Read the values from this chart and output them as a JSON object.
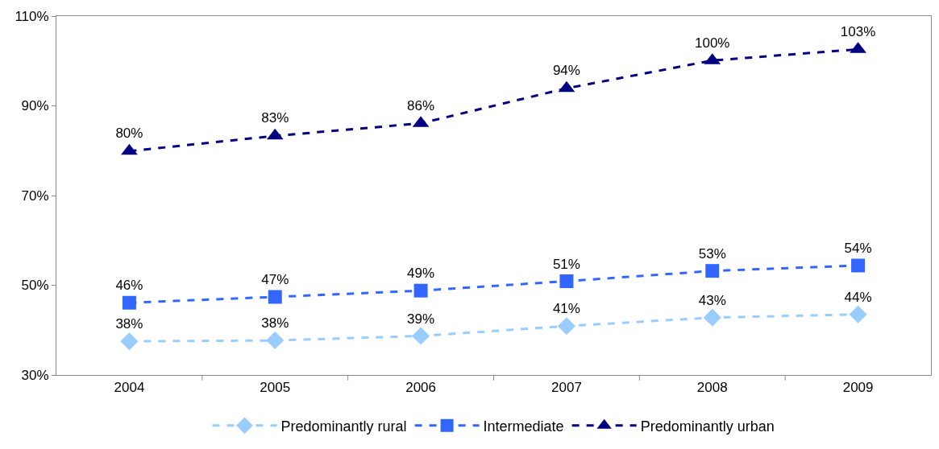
{
  "chart_data": {
    "type": "line",
    "categories": [
      "2004",
      "2005",
      "2006",
      "2007",
      "2008",
      "2009"
    ],
    "series": [
      {
        "name": "Predominantly rural",
        "color": "#99ccff",
        "marker": "diamond",
        "values": [
          37.5,
          37.7,
          38.7,
          40.9,
          42.8,
          43.5
        ],
        "value_labels": [
          "38%",
          "38%",
          "39%",
          "41%",
          "43%",
          "44%"
        ]
      },
      {
        "name": "Intermediate",
        "color": "#3366ff",
        "marker": "square",
        "values": [
          46.1,
          47.4,
          48.8,
          50.9,
          53.2,
          54.4
        ],
        "value_labels": [
          "46%",
          "47%",
          "49%",
          "51%",
          "53%",
          "54%"
        ]
      },
      {
        "name": "Predominantly urban",
        "color": "#000080",
        "marker": "triangle",
        "values": [
          79.9,
          83.3,
          86.1,
          93.9,
          100.1,
          102.6
        ],
        "value_labels": [
          "80%",
          "83%",
          "86%",
          "94%",
          "100%",
          "103%"
        ]
      }
    ],
    "ylim": [
      30,
      110
    ],
    "yticks": [
      {
        "value": 30,
        "label": "30%"
      },
      {
        "value": 50,
        "label": "50%"
      },
      {
        "value": 70,
        "label": "70%"
      },
      {
        "value": 90,
        "label": "90%"
      },
      {
        "value": 110,
        "label": "110%"
      }
    ],
    "legend": "bottom",
    "line_style": "dashed"
  }
}
